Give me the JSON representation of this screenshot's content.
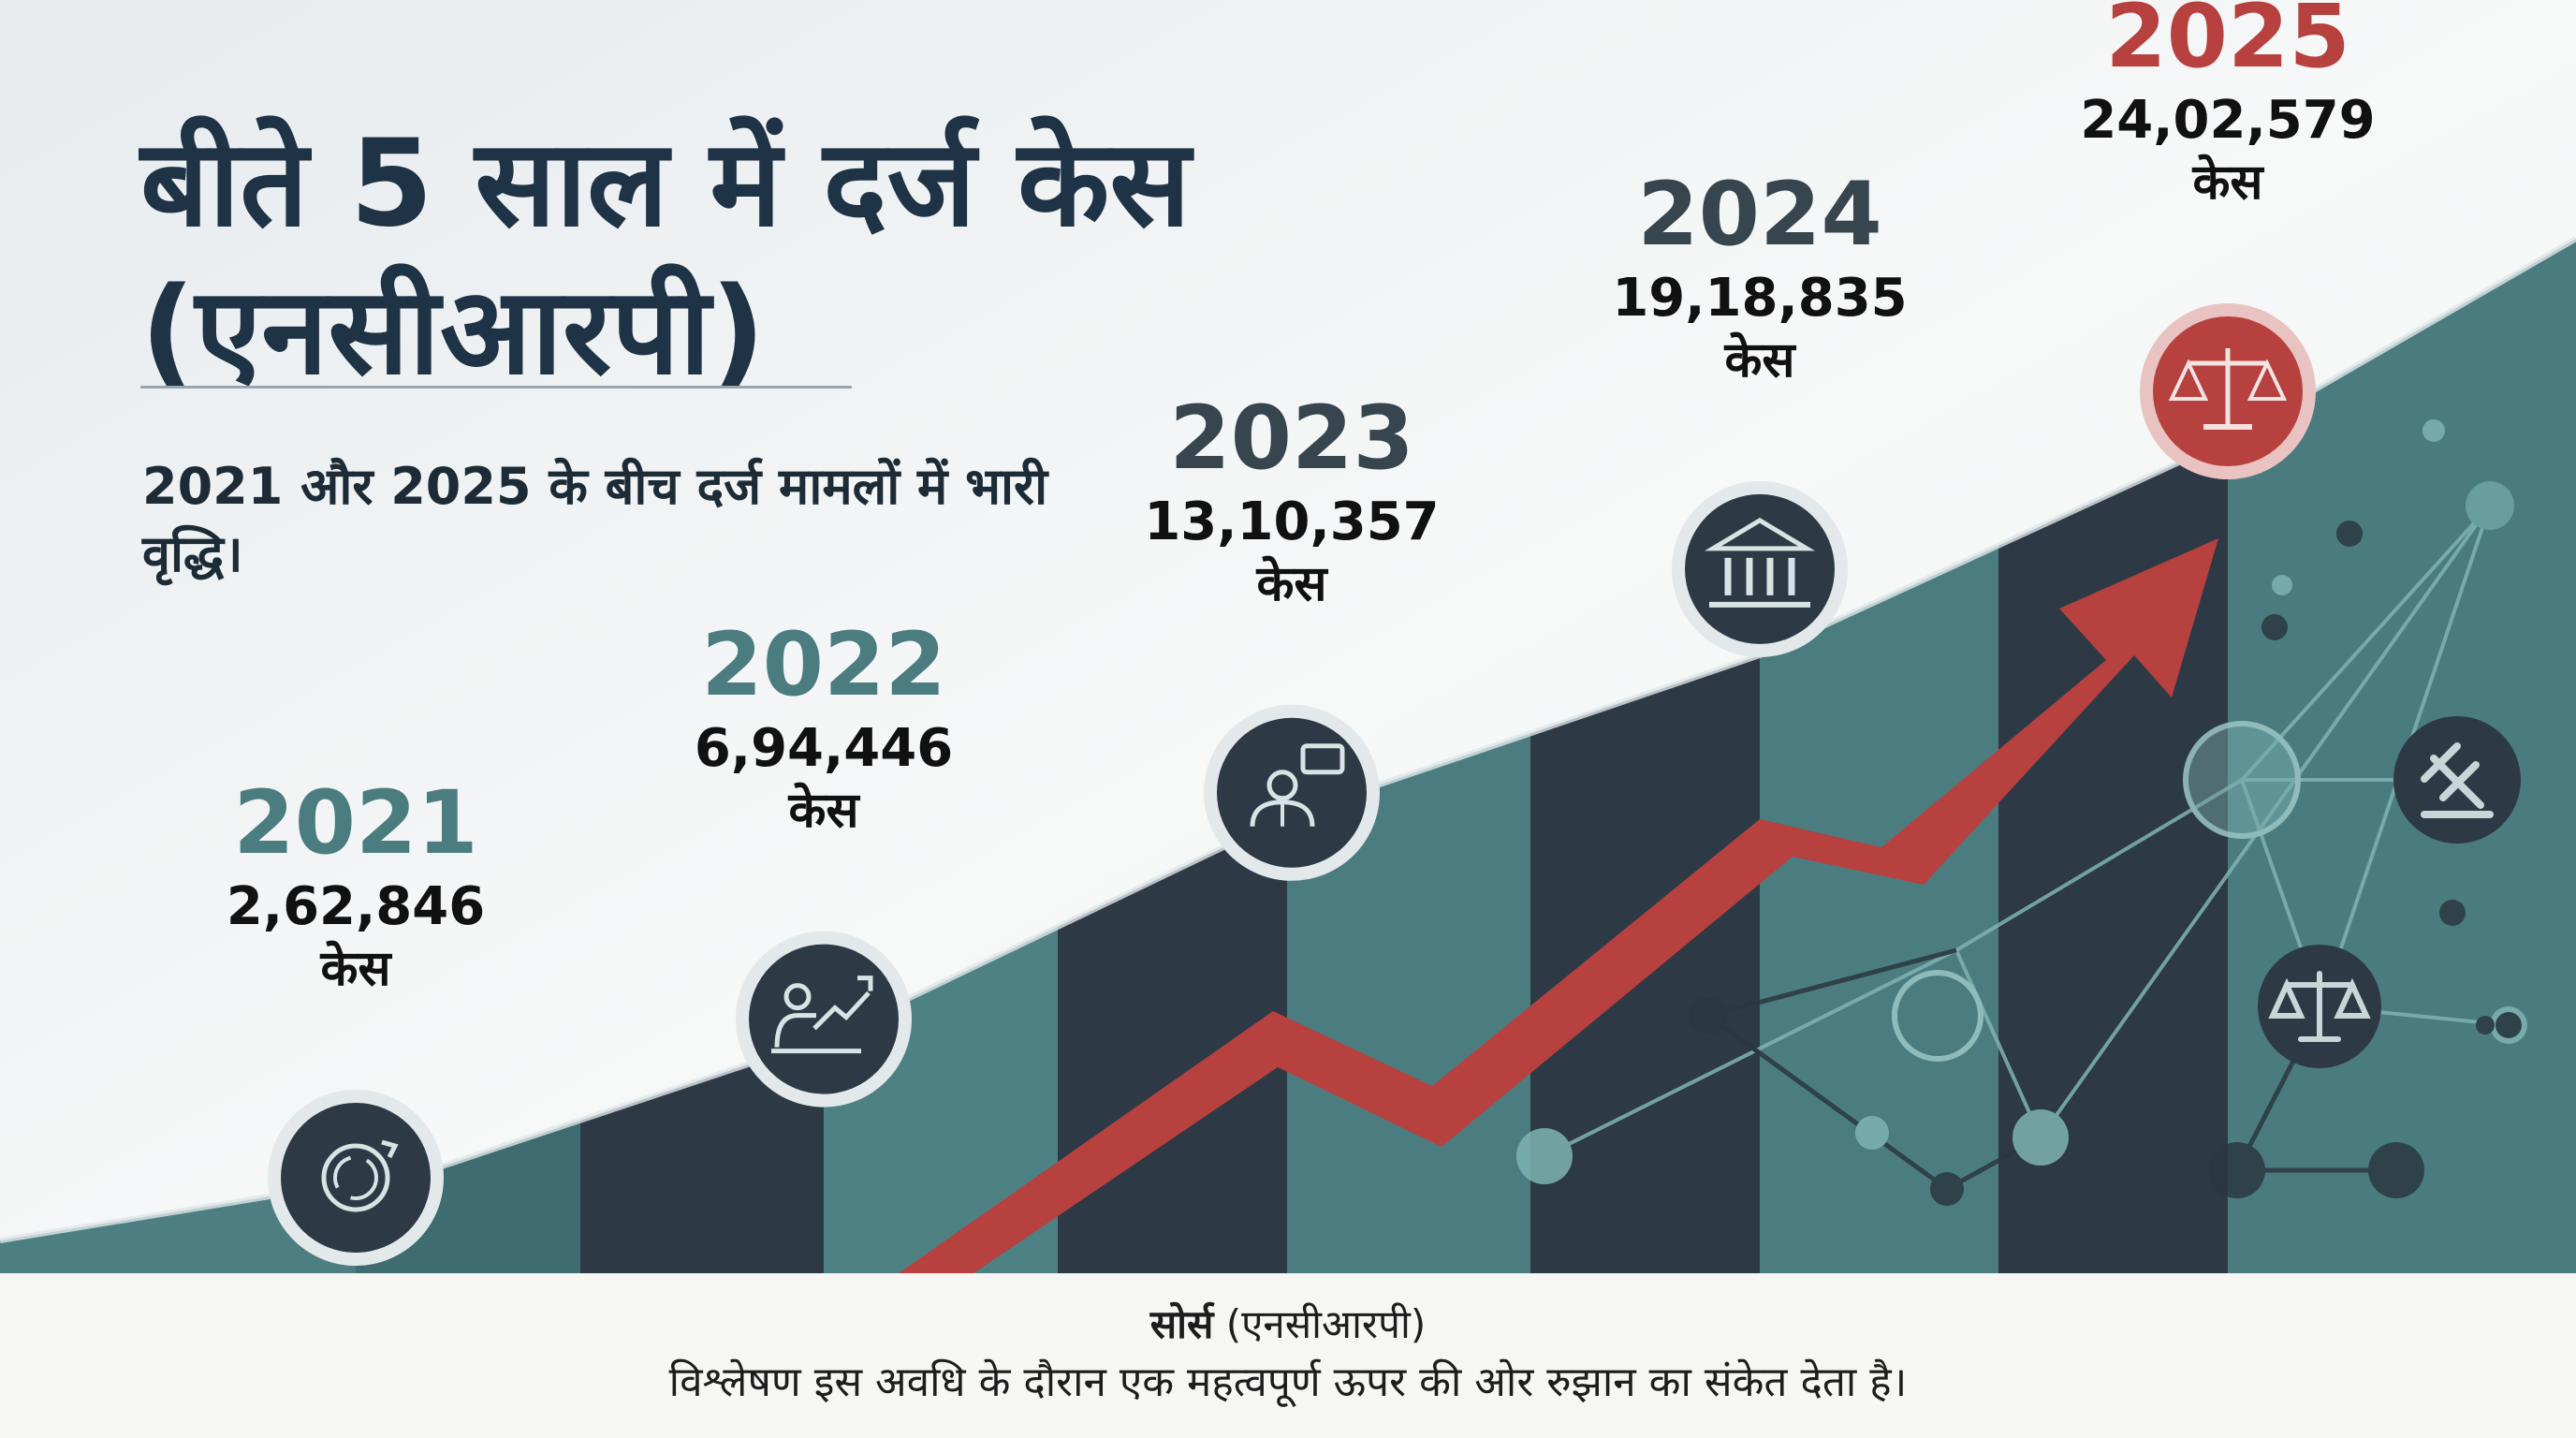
{
  "title_line1": "बीते 5 साल में दर्ज केस",
  "title_line2": "(एनसीआरपी)",
  "subtitle": "2021 और 2025 के बीच दर्ज मामलों में भारी वृद्धि।",
  "footer": {
    "source_label": "सोर्स",
    "source_value": "(एनसीआरपी)",
    "note": "विश्लेषण इस अवधि के दौरान एक महत्वपूर्ण ऊपर की ओर रुझान का संकेत देता है।"
  },
  "colors": {
    "accent_red": "#b6413f",
    "dark_slate": "#2d3a46",
    "teal": "#4b7d80",
    "title_text": "#1f3346"
  },
  "chart_data": {
    "type": "area",
    "categories": [
      "2021",
      "2022",
      "2023",
      "2024",
      "2025"
    ],
    "values": [
      262846,
      694446,
      1310357,
      1918835,
      2402579
    ],
    "value_labels": [
      "2,62,846",
      "6,94,446",
      "13,10,357",
      "19,18,835",
      "24,02,579"
    ],
    "unit_label": "केस",
    "icons": [
      "refresh-icon",
      "growth-presenter-icon",
      "speaker-icon",
      "court-building-icon",
      "scales-icon"
    ],
    "highlight": "2025"
  }
}
